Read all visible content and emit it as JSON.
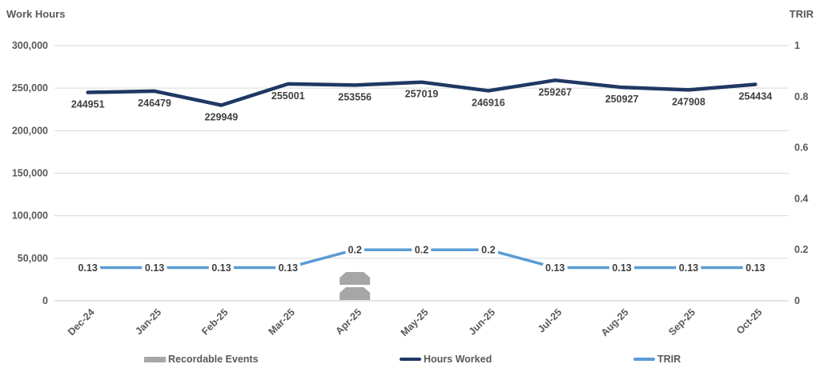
{
  "titles": {
    "left_axis": "Work Hours",
    "right_axis": "TRIR"
  },
  "legend": {
    "items": [
      {
        "label": "Recordable Events",
        "swatch": "bar",
        "color": "#a6a6a6"
      },
      {
        "label": "Hours Worked",
        "swatch": "line",
        "color": "#1f3864"
      },
      {
        "label": "TRIR",
        "swatch": "line",
        "color": "#5b9bd5"
      }
    ]
  },
  "colors": {
    "hours_line": "#1f3864",
    "trir_line": "#5b9bd5",
    "events_bar": "#a6a6a6",
    "gridline": "#d9d9d9",
    "axis_line": "#c9c9c9",
    "axis_text": "#595959",
    "data_label_text": "#404040"
  },
  "chart_data": {
    "type": "combo (bar + 2 lines, dual axis)",
    "categories": [
      "Dec-24",
      "Jan-25",
      "Feb-25",
      "Mar-25",
      "Apr-25",
      "May-25",
      "Jun-25",
      "Jul-25",
      "Aug-25",
      "Sep-25",
      "Oct-25"
    ],
    "series": [
      {
        "name": "Recordable Events",
        "type": "bar",
        "axis": "none-visible",
        "color": "#a6a6a6",
        "values": [
          0,
          0,
          0,
          0,
          2,
          0,
          0,
          0,
          0,
          0,
          0
        ],
        "note": "rendered as stacked chamfered blocks, one per event"
      },
      {
        "name": "Hours Worked",
        "type": "line",
        "axis": "left",
        "color": "#1f3864",
        "values": [
          244951,
          246479,
          229949,
          255001,
          253556,
          257019,
          246916,
          259267,
          250927,
          247908,
          254434
        ],
        "data_labels": [
          "244951",
          "246479",
          "229949",
          "255001",
          "253556",
          "257019",
          "246916",
          "259267",
          "250927",
          "247908",
          "254434"
        ]
      },
      {
        "name": "TRIR",
        "type": "line",
        "axis": "right",
        "color": "#5b9bd5",
        "values": [
          0.13,
          0.13,
          0.13,
          0.13,
          0.2,
          0.2,
          0.2,
          0.13,
          0.13,
          0.13,
          0.13
        ],
        "data_labels": [
          "0.13",
          "0.13",
          "0.13",
          "0.13",
          "0.2",
          "0.2",
          "0.2",
          "0.13",
          "0.13",
          "0.13",
          "0.13"
        ]
      }
    ],
    "left_axis": {
      "title": "Work Hours",
      "min": 0,
      "max": 300000,
      "step": 50000,
      "tick_labels": [
        "0",
        "50,000",
        "100,000",
        "150,000",
        "200,000",
        "250,000",
        "300,000"
      ]
    },
    "right_axis": {
      "title": "TRIR",
      "min": 0,
      "max": 1,
      "step": 0.2,
      "tick_labels": [
        "0",
        "0.2",
        "0.4",
        "0.6",
        "0.8",
        "1"
      ]
    },
    "grid": true,
    "legend_position": "bottom"
  }
}
